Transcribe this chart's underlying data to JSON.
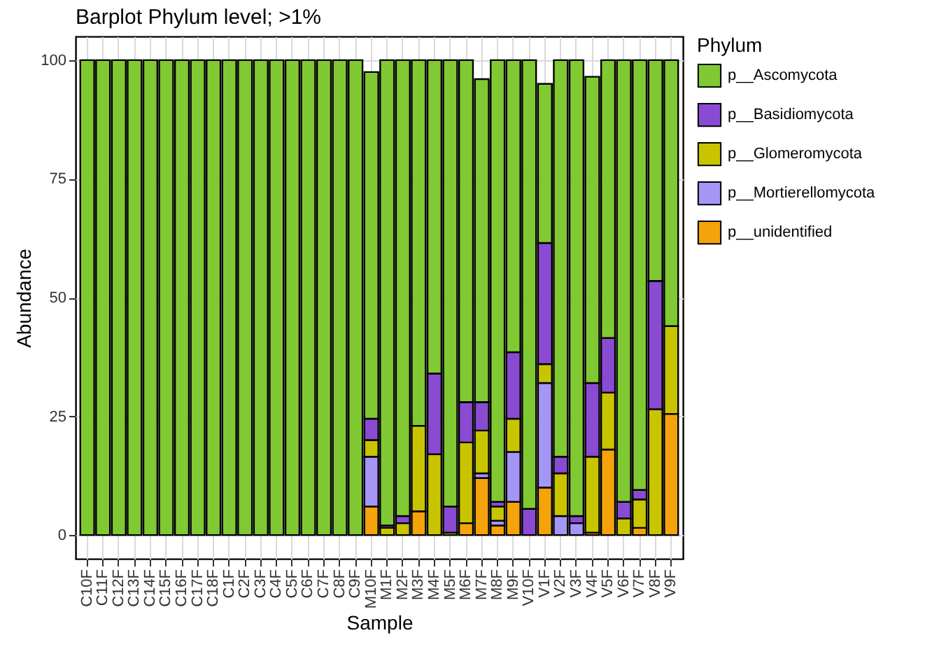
{
  "chart_data": {
    "type": "bar",
    "title": "Barplot Phylum level; >1%",
    "xlabel": "Sample",
    "ylabel": "Abundance",
    "legend_title": "Phylum",
    "stacked": true,
    "legend": "right",
    "grid": true,
    "ylim": [
      -5,
      105
    ],
    "yticks": [
      0,
      25,
      50,
      75,
      100
    ],
    "categories": [
      "C10F",
      "C11F",
      "C12F",
      "C13F",
      "C14F",
      "C15F",
      "C16F",
      "C17F",
      "C18F",
      "C1F",
      "C2F",
      "C3F",
      "C4F",
      "C5F",
      "C6F",
      "C7F",
      "C8F",
      "C9F",
      "M10F",
      "M1F",
      "M2F",
      "M3F",
      "M4F",
      "M5F",
      "M6F",
      "M7F",
      "M8F",
      "M9F",
      "V10F",
      "V1F",
      "V2F",
      "V3F",
      "V4F",
      "V5F",
      "V6F",
      "V7F",
      "V8F",
      "V9F"
    ],
    "series": [
      {
        "name": "p__unidentified",
        "color": "#f5a30a",
        "values": [
          null,
          null,
          null,
          null,
          null,
          null,
          null,
          null,
          null,
          null,
          null,
          null,
          null,
          null,
          null,
          null,
          null,
          null,
          6,
          null,
          null,
          5,
          null,
          null,
          2.5,
          12,
          2,
          7,
          null,
          10,
          null,
          null,
          0.5,
          18,
          null,
          1.5,
          null,
          25.5
        ]
      },
      {
        "name": "p__Mortierellomycota",
        "color": "#a596f5",
        "values": [
          null,
          null,
          null,
          null,
          null,
          null,
          null,
          null,
          null,
          null,
          null,
          null,
          null,
          null,
          null,
          null,
          null,
          null,
          10.5,
          null,
          null,
          null,
          null,
          null,
          null,
          1,
          1,
          10.5,
          null,
          22,
          4,
          2.5,
          null,
          null,
          null,
          null,
          null,
          null
        ]
      },
      {
        "name": "p__Glomeromycota",
        "color": "#c9c400",
        "values": [
          null,
          null,
          null,
          null,
          null,
          null,
          null,
          null,
          null,
          null,
          null,
          null,
          null,
          null,
          null,
          null,
          null,
          null,
          3.5,
          1.5,
          2.5,
          18,
          17,
          0.5,
          17,
          9,
          3,
          7,
          null,
          4,
          9,
          null,
          16,
          12,
          3.5,
          6,
          26.5,
          18.5
        ]
      },
      {
        "name": "p__Basidiomycota",
        "color": "#8a4bd2",
        "values": [
          null,
          null,
          null,
          null,
          null,
          null,
          null,
          null,
          null,
          null,
          null,
          null,
          null,
          null,
          null,
          null,
          null,
          null,
          4.5,
          0.5,
          1.5,
          null,
          17,
          5.5,
          8.5,
          6,
          1,
          14,
          5.5,
          25.5,
          3.5,
          1.5,
          15.5,
          11.5,
          3.5,
          2,
          27,
          null
        ]
      },
      {
        "name": "p__Ascomycota",
        "color": "#80c932",
        "values": [
          100,
          100,
          100,
          100,
          100,
          100,
          100,
          100,
          100,
          100,
          100,
          100,
          100,
          100,
          100,
          100,
          100,
          100,
          73,
          98,
          96,
          77,
          66,
          94,
          72,
          68,
          93,
          61.5,
          94.5,
          33.5,
          83.5,
          96,
          64.5,
          58.5,
          93,
          90.5,
          46.5,
          56
        ]
      }
    ]
  }
}
